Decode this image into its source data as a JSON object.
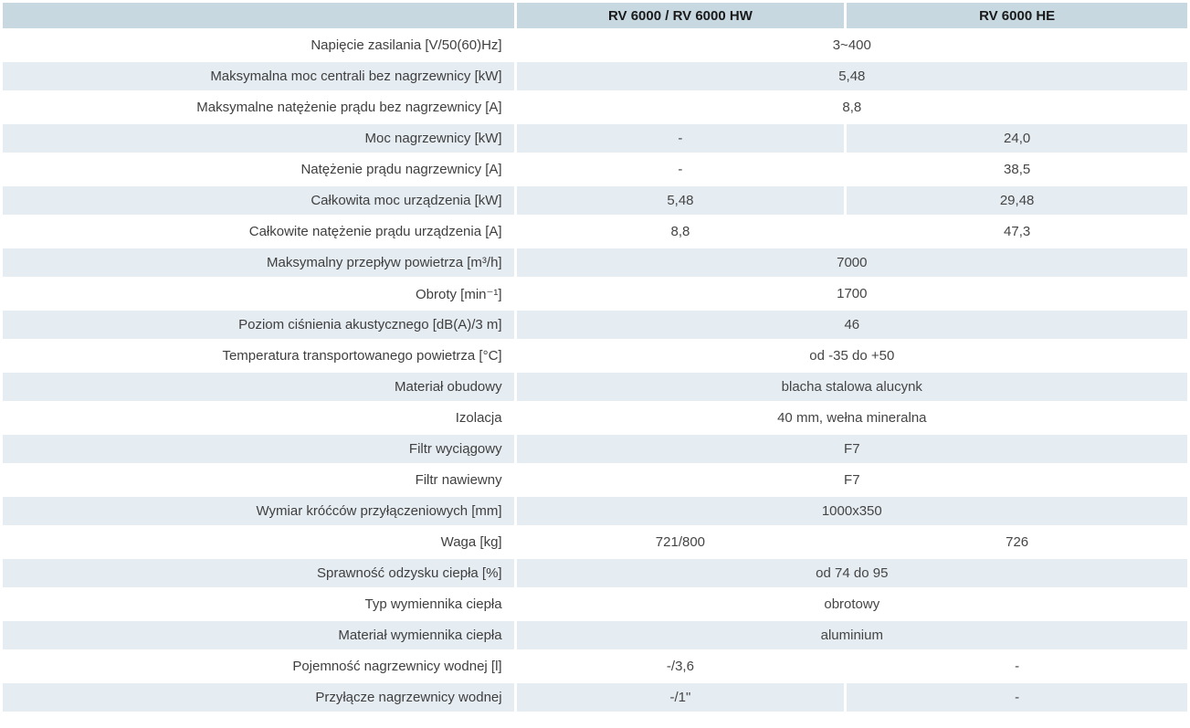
{
  "colors": {
    "header_bg": "#c7d8e1",
    "alt_row_bg": "#e5ecf2",
    "label_text": "#3f3f3f",
    "value_text": "#454545",
    "header_text": "#1a1a1a"
  },
  "header": {
    "col_label": "",
    "col1": "RV 6000 / RV 6000 HW",
    "col2": "RV 6000 HE"
  },
  "rows": [
    {
      "label": "Napięcie zasilania [V/50(60)Hz]",
      "merged": "3~400"
    },
    {
      "label": "Maksymalna moc centrali bez nagrzewnicy [kW]",
      "merged": "5,48"
    },
    {
      "label": "Maksymalne natężenie prądu bez nagrzewnicy [A]",
      "merged": "8,8"
    },
    {
      "label": "Moc nagrzewnicy [kW]",
      "col1": "-",
      "col2": "24,0"
    },
    {
      "label": "Natężenie prądu nagrzewnicy [A]",
      "col1": "-",
      "col2": "38,5"
    },
    {
      "label": "Całkowita moc urządzenia [kW]",
      "col1": "5,48",
      "col2": "29,48"
    },
    {
      "label": "Całkowite natężenie prądu urządzenia [A]",
      "col1": "8,8",
      "col2": "47,3"
    },
    {
      "label": "Maksymalny przepływ powietrza [m³/h]",
      "merged": "7000"
    },
    {
      "label": "Obroty [min⁻¹]",
      "merged": "1700"
    },
    {
      "label": "Poziom ciśnienia akustycznego  [dB(A)/3 m]",
      "merged": "46"
    },
    {
      "label": "Temperatura transportowanego powietrza [°C]",
      "merged": "od -35 do +50"
    },
    {
      "label": "Materiał obudowy",
      "merged": "blacha stalowa alucynk"
    },
    {
      "label": "Izolacja",
      "merged": "40 mm, wełna mineralna"
    },
    {
      "label": "Filtr wyciągowy",
      "merged": "F7"
    },
    {
      "label": "Filtr nawiewny",
      "merged": "F7"
    },
    {
      "label": "Wymiar króćców przyłączeniowych [mm]",
      "merged": "1000x350"
    },
    {
      "label": "Waga [kg]",
      "col1": "721/800",
      "col2": "726"
    },
    {
      "label": "Sprawność odzysku ciepła [%]",
      "merged": "od 74 do 95"
    },
    {
      "label": "Typ wymiennika ciepła",
      "merged": "obrotowy"
    },
    {
      "label": "Materiał wymiennika ciepła",
      "merged": "aluminium"
    },
    {
      "label": "Pojemność nagrzewnicy wodnej [l]",
      "col1": "-/3,6",
      "col2": "-"
    },
    {
      "label": "Przyłącze nagrzewnicy wodnej",
      "col1": "-/1\"",
      "col2": "-"
    }
  ]
}
